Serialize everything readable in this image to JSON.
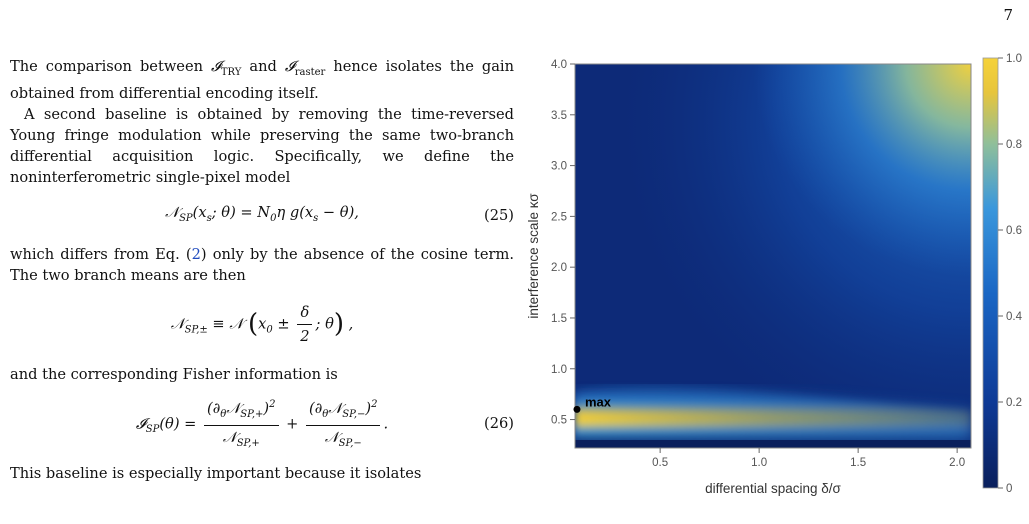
{
  "page": {
    "number": "7"
  },
  "text": {
    "p1": "The comparison between 𝓘_TRY and 𝓘_raster hence isolates the gain obtained from differential encoding itself.",
    "p2": "A second baseline is obtained by removing the time-reversed Young fringe modulation while preserving the same two-branch differential acquisition logic. Specifically, we define the noninterferometric single-pixel model",
    "eq25": "𝒩_SP(x_s; θ) = N₀η g(x_s − θ),",
    "eq25_num": "(25)",
    "p3": "which differs from Eq. (2) only by the absence of the cosine term. The two branch means are then",
    "p3_eq_ref": "2",
    "eq_branch": "𝒩_SP,± ≡ 𝒩(x₀ ± δ/2; θ),",
    "p4": "and the corresponding Fisher information is",
    "eq26": "𝓘_SP(θ) = (∂_θ𝒩_SP,+)²/𝒩_SP,+ + (∂_θ𝒩_SP,−)²/𝒩_SP,−.",
    "eq26_num": "(26)",
    "p5": "This baseline is especially important because it isolates"
  },
  "chart_data": {
    "type": "heatmap",
    "xlabel": "differential spacing δ/σ",
    "ylabel": "interference scale κσ",
    "xlim": [
      0.07,
      2.07
    ],
    "ylim": [
      0.22,
      4.0
    ],
    "xticks": [
      0.5,
      1.0,
      1.5,
      2.0
    ],
    "xtick_labels": [
      "0.5",
      "1.0",
      "1.5",
      "2.0"
    ],
    "yticks": [
      0.5,
      1.0,
      1.5,
      2.0,
      2.5,
      3.0,
      3.5,
      4.0
    ],
    "ytick_labels": [
      "0.5",
      "1.0",
      "1.5",
      "2.0",
      "2.5",
      "3.0",
      "3.5",
      "4.0"
    ],
    "colorbar": {
      "min": 0,
      "max": 1.0,
      "ticks": [
        0,
        0.2,
        0.4,
        0.6,
        0.8,
        1.0
      ],
      "tick_labels": [
        "0",
        "0.2",
        "0.4",
        "0.6",
        "0.8",
        "1.0"
      ]
    },
    "colormap": [
      "#0a1f5c",
      "#0e3a96",
      "#1a66c4",
      "#3a97dc",
      "#8fbf9a",
      "#e7c53c",
      "#f5d23a"
    ],
    "marker": {
      "label": "max",
      "x": 0.08,
      "y": 0.6
    },
    "grid": false
  }
}
